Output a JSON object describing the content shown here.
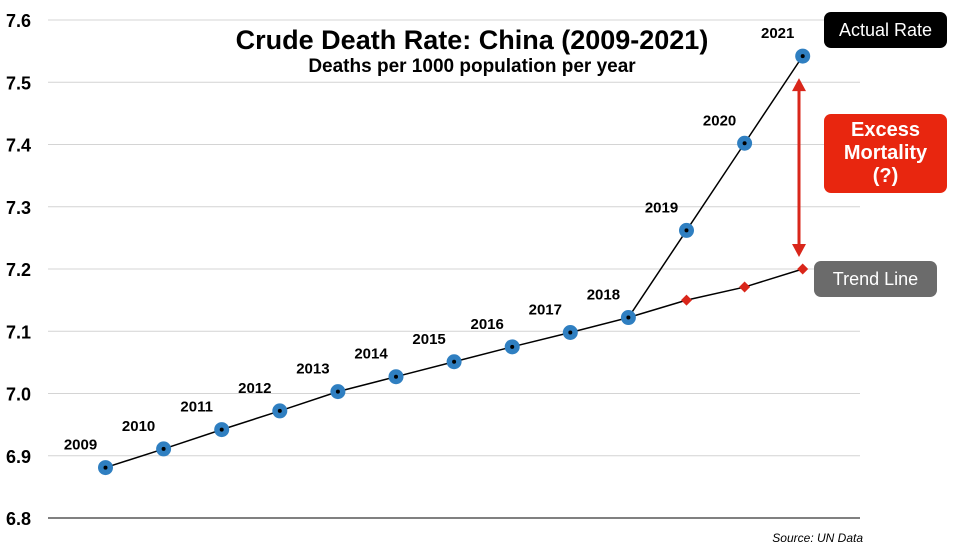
{
  "chart_data": {
    "type": "line",
    "title": "Crude Death Rate: China (2009-2021)",
    "subtitle": "Deaths per 1000 population per year",
    "xlabel": "",
    "ylabel": "",
    "ylim": [
      6.8,
      7.6
    ],
    "yticks": [
      "6.8",
      "6.9",
      "7.0",
      "7.1",
      "7.2",
      "7.3",
      "7.4",
      "7.5",
      "7.6"
    ],
    "grid": true,
    "series": [
      {
        "name": "Actual Rate",
        "x": [
          "2009",
          "2010",
          "2011",
          "2012",
          "2013",
          "2014",
          "2015",
          "2016",
          "2017",
          "2018",
          "2019",
          "2020",
          "2021"
        ],
        "values": [
          6.881,
          6.911,
          6.942,
          6.972,
          7.003,
          7.027,
          7.051,
          7.075,
          7.098,
          7.122,
          7.262,
          7.402,
          7.542
        ],
        "color": "#2f7fc1"
      },
      {
        "name": "Trend Line",
        "x": [
          "2018",
          "2019",
          "2020",
          "2021"
        ],
        "values": [
          7.122,
          7.15,
          7.171,
          7.2
        ],
        "color": "#d9261a"
      }
    ],
    "annotations": {
      "actual_label": "Actual Rate",
      "trend_label": "Trend Line",
      "excess_lines": [
        "Excess",
        "Mortality",
        "(?)"
      ]
    }
  },
  "source": "Source: UN Data"
}
